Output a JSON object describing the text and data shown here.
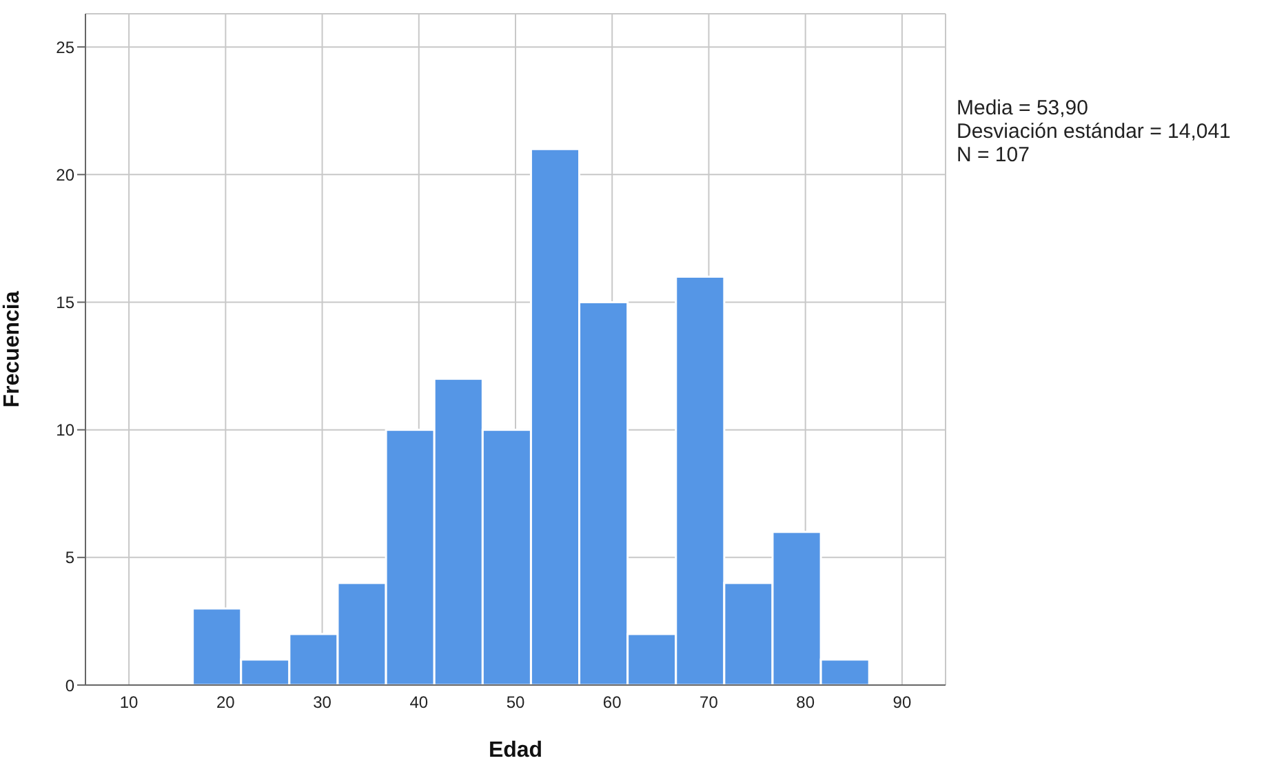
{
  "chart_data": {
    "type": "histogram",
    "xlabel": "Edad",
    "ylabel": "Frecuencia",
    "bins": [
      16.6,
      21.6,
      26.6,
      31.6,
      36.6,
      41.6,
      46.6,
      51.6,
      56.6,
      61.6,
      66.6,
      71.6,
      76.6,
      81.6,
      86.6
    ],
    "values": [
      3,
      1,
      2,
      4,
      10,
      12,
      10,
      21,
      15,
      2,
      16,
      4,
      6,
      1
    ],
    "color": "#5596e6",
    "xlim": [
      5.5,
      94.5
    ],
    "xticks": [
      10,
      20,
      30,
      40,
      50,
      60,
      70,
      80,
      90
    ],
    "ylim": [
      0,
      26.3
    ],
    "yticks": [
      0,
      5,
      10,
      15,
      20,
      25
    ],
    "grid": true,
    "annotations": [
      "Media = 53,90",
      "Desviación estándar = 14,041",
      "N = 107"
    ]
  }
}
